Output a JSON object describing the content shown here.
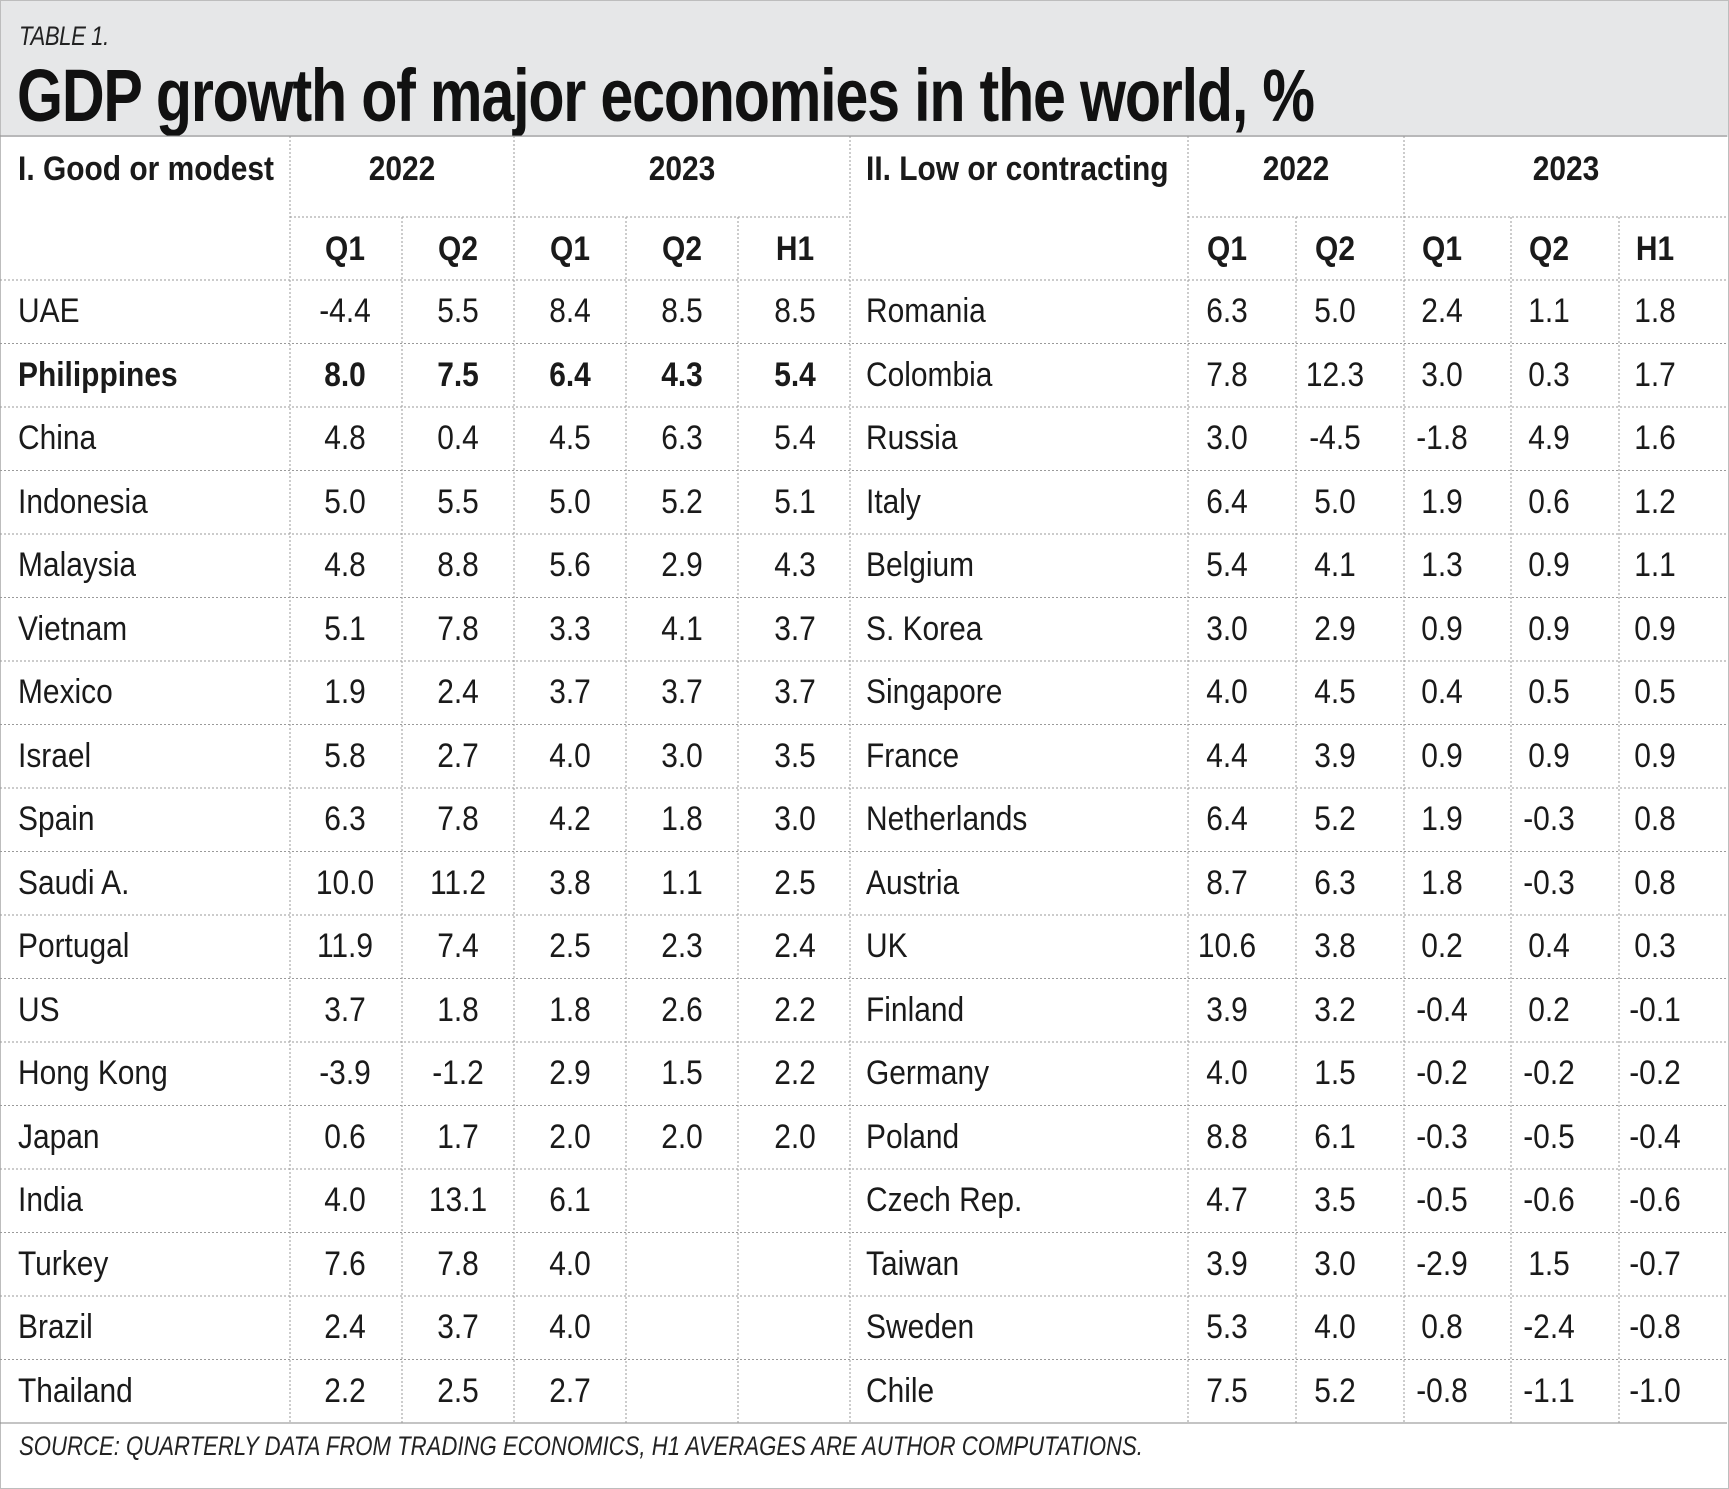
{
  "header": {
    "tag": "TABLE 1.",
    "title": "GDP growth of major economies in the world, %"
  },
  "source": "SOURCE: QUARTERLY DATA FROM TRADING ECONOMICS, H1 AVERAGES ARE AUTHOR COMPUTATIONS.",
  "left": {
    "group_title": "I. Good or modest",
    "year_2022": "2022",
    "year_2023": "2023",
    "cols": [
      "Q1",
      "Q2",
      "Q1",
      "Q2",
      "H1"
    ],
    "rows": [
      {
        "name": "UAE",
        "values": [
          "-4.4",
          "5.5",
          "8.4",
          "8.5",
          "8.5"
        ]
      },
      {
        "name": "Philippines",
        "bold": true,
        "values": [
          "8.0",
          "7.5",
          "6.4",
          "4.3",
          "5.4"
        ]
      },
      {
        "name": "China",
        "values": [
          "4.8",
          "0.4",
          "4.5",
          "6.3",
          "5.4"
        ]
      },
      {
        "name": "Indonesia",
        "values": [
          "5.0",
          "5.5",
          "5.0",
          "5.2",
          "5.1"
        ]
      },
      {
        "name": "Malaysia",
        "values": [
          "4.8",
          "8.8",
          "5.6",
          "2.9",
          "4.3"
        ]
      },
      {
        "name": "Vietnam",
        "values": [
          "5.1",
          "7.8",
          "3.3",
          "4.1",
          "3.7"
        ]
      },
      {
        "name": "Mexico",
        "values": [
          "1.9",
          "2.4",
          "3.7",
          "3.7",
          "3.7"
        ]
      },
      {
        "name": "Israel",
        "values": [
          "5.8",
          "2.7",
          "4.0",
          "3.0",
          "3.5"
        ]
      },
      {
        "name": "Spain",
        "values": [
          "6.3",
          "7.8",
          "4.2",
          "1.8",
          "3.0"
        ]
      },
      {
        "name": "Saudi A.",
        "values": [
          "10.0",
          "11.2",
          "3.8",
          "1.1",
          "2.5"
        ]
      },
      {
        "name": "Portugal",
        "values": [
          "11.9",
          "7.4",
          "2.5",
          "2.3",
          "2.4"
        ]
      },
      {
        "name": "US",
        "values": [
          "3.7",
          "1.8",
          "1.8",
          "2.6",
          "2.2"
        ]
      },
      {
        "name": "Hong Kong",
        "values": [
          "-3.9",
          "-1.2",
          "2.9",
          "1.5",
          "2.2"
        ]
      },
      {
        "name": "Japan",
        "values": [
          "0.6",
          "1.7",
          "2.0",
          "2.0",
          "2.0"
        ]
      },
      {
        "name": "India",
        "values": [
          "4.0",
          "13.1",
          "6.1",
          "",
          ""
        ]
      },
      {
        "name": "Turkey",
        "values": [
          "7.6",
          "7.8",
          "4.0",
          "",
          ""
        ]
      },
      {
        "name": "Brazil",
        "values": [
          "2.4",
          "3.7",
          "4.0",
          "",
          ""
        ]
      },
      {
        "name": "Thailand",
        "values": [
          "2.2",
          "2.5",
          "2.7",
          "",
          ""
        ]
      }
    ]
  },
  "right": {
    "group_title": "II. Low or contracting",
    "year_2022": "2022",
    "year_2023": "2023",
    "cols": [
      "Q1",
      "Q2",
      "Q1",
      "Q2",
      "H1"
    ],
    "rows": [
      {
        "name": "Romania",
        "values": [
          "6.3",
          "5.0",
          "2.4",
          "1.1",
          "1.8"
        ]
      },
      {
        "name": "Colombia",
        "values": [
          "7.8",
          "12.3",
          "3.0",
          "0.3",
          "1.7"
        ]
      },
      {
        "name": "Russia",
        "values": [
          "3.0",
          "-4.5",
          "-1.8",
          "4.9",
          "1.6"
        ]
      },
      {
        "name": "Italy",
        "values": [
          "6.4",
          "5.0",
          "1.9",
          "0.6",
          "1.2"
        ]
      },
      {
        "name": "Belgium",
        "values": [
          "5.4",
          "4.1",
          "1.3",
          "0.9",
          "1.1"
        ]
      },
      {
        "name": "S. Korea",
        "values": [
          "3.0",
          "2.9",
          "0.9",
          "0.9",
          "0.9"
        ]
      },
      {
        "name": "Singapore",
        "values": [
          "4.0",
          "4.5",
          "0.4",
          "0.5",
          "0.5"
        ]
      },
      {
        "name": "France",
        "values": [
          "4.4",
          "3.9",
          "0.9",
          "0.9",
          "0.9"
        ]
      },
      {
        "name": "Netherlands",
        "values": [
          "6.4",
          "5.2",
          "1.9",
          "-0.3",
          "0.8"
        ]
      },
      {
        "name": "Austria",
        "values": [
          "8.7",
          "6.3",
          "1.8",
          "-0.3",
          "0.8"
        ]
      },
      {
        "name": "UK",
        "values": [
          "10.6",
          "3.8",
          "0.2",
          "0.4",
          "0.3"
        ]
      },
      {
        "name": "Finland",
        "values": [
          "3.9",
          "3.2",
          "-0.4",
          "0.2",
          "-0.1"
        ]
      },
      {
        "name": "Germany",
        "values": [
          "4.0",
          "1.5",
          "-0.2",
          "-0.2",
          "-0.2"
        ]
      },
      {
        "name": "Poland",
        "values": [
          "8.8",
          "6.1",
          "-0.3",
          "-0.5",
          "-0.4"
        ]
      },
      {
        "name": "Czech Rep.",
        "values": [
          "4.7",
          "3.5",
          "-0.5",
          "-0.6",
          "-0.6"
        ]
      },
      {
        "name": "Taiwan",
        "values": [
          "3.9",
          "3.0",
          "-2.9",
          "1.5",
          "-0.7"
        ]
      },
      {
        "name": "Sweden",
        "values": [
          "5.3",
          "4.0",
          "0.8",
          "-2.4",
          "-0.8"
        ]
      },
      {
        "name": "Chile",
        "values": [
          "7.5",
          "5.2",
          "-0.8",
          "-1.1",
          "-1.0"
        ]
      }
    ]
  }
}
